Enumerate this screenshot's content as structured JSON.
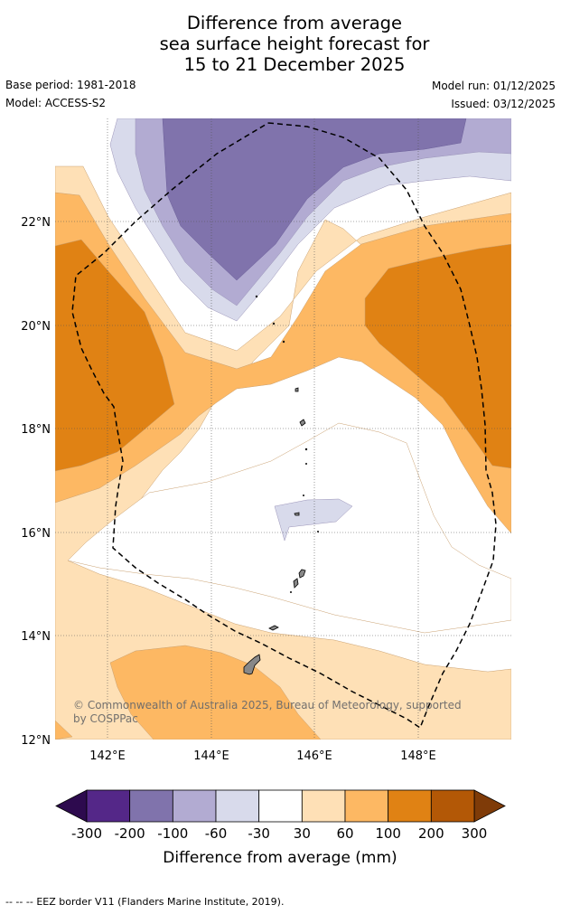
{
  "title": {
    "line1": "Difference from average",
    "line2": "sea surface height forecast for",
    "line3": "15 to 21 December 2025"
  },
  "meta": {
    "base_period": "Base period: 1981-2018",
    "model": "Model: ACCESS-S2",
    "model_run": "Model run: 01/12/2025",
    "issued": "Issued: 03/12/2025"
  },
  "map": {
    "lat_labels": [
      "22°N",
      "20°N",
      "18°N",
      "16°N",
      "14°N",
      "12°N"
    ],
    "lon_labels": [
      "142°E",
      "144°E",
      "146°E",
      "148°E"
    ],
    "copyright_line1": "© Commonwealth of Australia 2025, Bureau of Meteorology, supported",
    "copyright_line2": "by COSPPac"
  },
  "colorbar": {
    "tick_labels": [
      "-300",
      "-200",
      "-100",
      "-60",
      "-30",
      "30",
      "60",
      "100",
      "200",
      "300"
    ],
    "colors": [
      "#2d0a4e",
      "#542788",
      "#8073ac",
      "#b2abd2",
      "#d8daeb",
      "#ffffff",
      "#fee0b6",
      "#fdb863",
      "#e08214",
      "#b35806",
      "#7f3b08"
    ],
    "label": "Difference from average (mm)"
  },
  "legend": {
    "eez_marker": "--  --  --",
    "eez_text": "EEZ border V11 (Flanders Marine Institute, 2019)."
  }
}
